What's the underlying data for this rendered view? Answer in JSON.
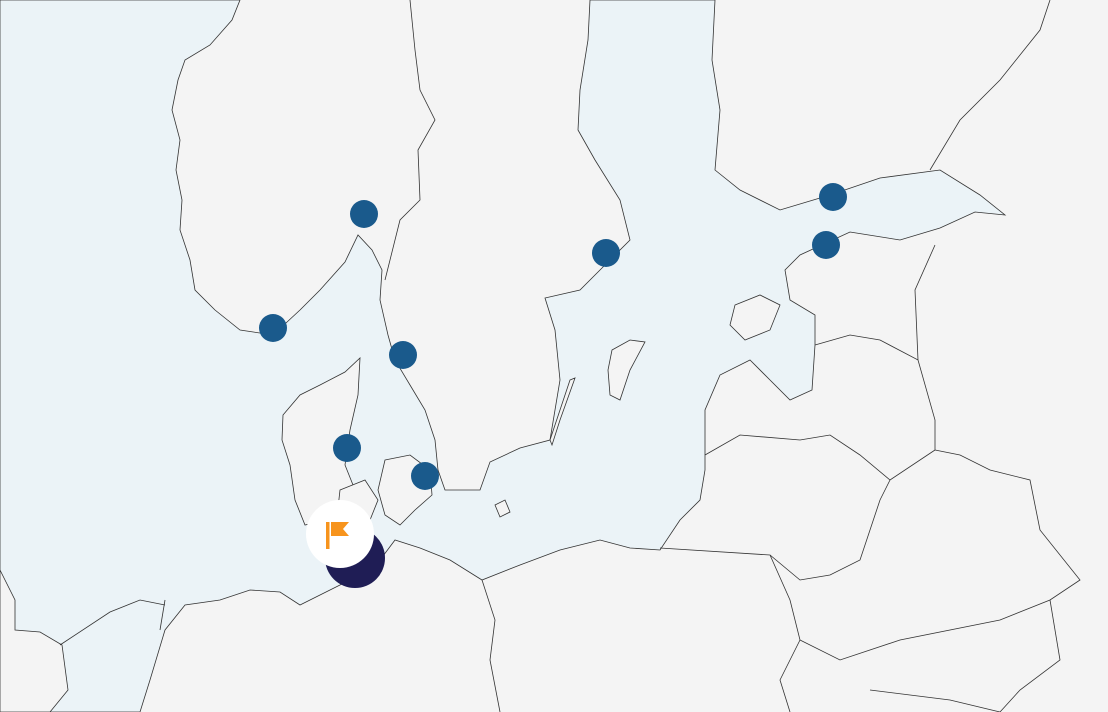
{
  "map": {
    "colors": {
      "land": "#f4f4f4",
      "sea": "#ebf3f7",
      "border": "#333333",
      "marker": "#1a5a8c",
      "selected_marker": "#1f1d55",
      "flag": "#f7941d",
      "flag_bubble": "#ffffff"
    },
    "markers": [
      {
        "icon": "location-dot"
      },
      {
        "icon": "location-dot"
      },
      {
        "icon": "location-dot"
      },
      {
        "icon": "location-dot"
      },
      {
        "icon": "location-dot"
      },
      {
        "icon": "location-dot"
      },
      {
        "icon": "location-dot"
      },
      {
        "icon": "location-dot"
      }
    ],
    "selected_marker": {
      "icon": "flag-icon"
    }
  }
}
